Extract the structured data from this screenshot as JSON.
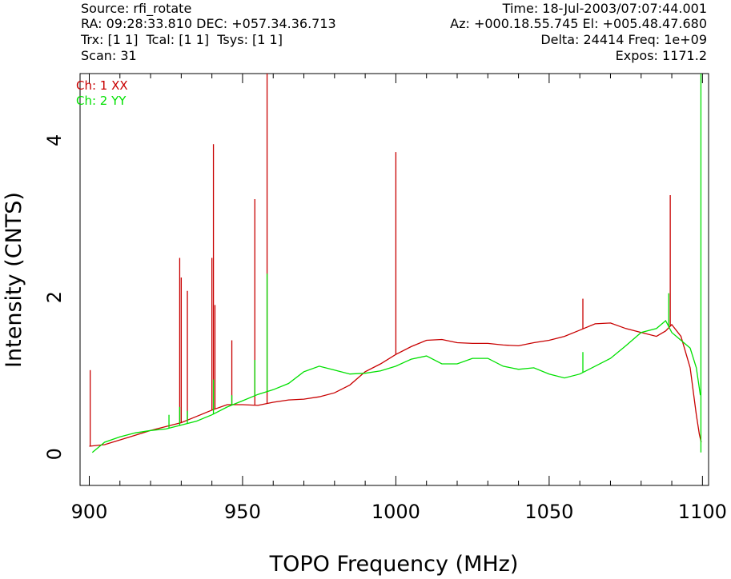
{
  "header": {
    "source": "Source: rfi_rotate",
    "radec": "RA: 09:28:33.810 DEC: +057.34.36.713",
    "trx": "Trx: [1 1]  Tcal: [1 1]  Tsys: [1 1]",
    "scan": "Scan: 31",
    "time": "Time: 18-Jul-2003/07:07:44.001",
    "azel": "Az: +000.18.55.745 El: +005.48.47.680",
    "delta": "Delta: 24414 Freq: 1e+09",
    "expos": "Expos: 1171.2"
  },
  "chart_data": {
    "type": "line",
    "xlabel": "TOPO Frequency (MHz)",
    "ylabel": "Intensity (CNTS)",
    "xlim": [
      897,
      1102
    ],
    "ylim": [
      -0.4,
      4.85
    ],
    "xticks": [
      900,
      950,
      1000,
      1050,
      1100
    ],
    "yticks": [
      0,
      2,
      4
    ],
    "legend_position": "top-left",
    "series": [
      {
        "name": "Ch: 1 XX",
        "color": "#c80000",
        "points": [
          [
            900,
            0.1
          ],
          [
            905,
            0.12
          ],
          [
            910,
            0.18
          ],
          [
            915,
            0.24
          ],
          [
            920,
            0.3
          ],
          [
            925,
            0.35
          ],
          [
            930,
            0.4
          ],
          [
            935,
            0.48
          ],
          [
            940,
            0.56
          ],
          [
            945,
            0.63
          ],
          [
            950,
            0.63
          ],
          [
            955,
            0.62
          ],
          [
            960,
            0.66
          ],
          [
            965,
            0.69
          ],
          [
            970,
            0.7
          ],
          [
            975,
            0.73
          ],
          [
            980,
            0.78
          ],
          [
            985,
            0.88
          ],
          [
            990,
            1.05
          ],
          [
            995,
            1.15
          ],
          [
            1000,
            1.27
          ],
          [
            1005,
            1.37
          ],
          [
            1010,
            1.45
          ],
          [
            1015,
            1.46
          ],
          [
            1020,
            1.42
          ],
          [
            1025,
            1.41
          ],
          [
            1030,
            1.41
          ],
          [
            1035,
            1.39
          ],
          [
            1040,
            1.38
          ],
          [
            1045,
            1.42
          ],
          [
            1050,
            1.45
          ],
          [
            1055,
            1.5
          ],
          [
            1060,
            1.58
          ],
          [
            1065,
            1.66
          ],
          [
            1070,
            1.67
          ],
          [
            1075,
            1.6
          ],
          [
            1080,
            1.55
          ],
          [
            1085,
            1.5
          ],
          [
            1088,
            1.57
          ],
          [
            1090,
            1.65
          ],
          [
            1093,
            1.5
          ],
          [
            1096,
            1.1
          ],
          [
            1098,
            0.5
          ],
          [
            1099,
            0.25
          ],
          [
            1099.6,
            0.15
          ]
        ],
        "spikes": [
          [
            900.3,
            1.07
          ],
          [
            929.5,
            2.5
          ],
          [
            930,
            2.25
          ],
          [
            932,
            2.08
          ],
          [
            940,
            2.5
          ],
          [
            940.5,
            3.95
          ],
          [
            941,
            1.9
          ],
          [
            946.5,
            1.45
          ],
          [
            954,
            3.25
          ],
          [
            958,
            4.85
          ],
          [
            1000,
            3.85
          ],
          [
            1061,
            1.98
          ],
          [
            1089.5,
            3.3
          ]
        ]
      },
      {
        "name": "Ch: 2 YY",
        "color": "#00e000",
        "points": [
          [
            901,
            0.02
          ],
          [
            905,
            0.15
          ],
          [
            910,
            0.22
          ],
          [
            915,
            0.27
          ],
          [
            920,
            0.3
          ],
          [
            925,
            0.32
          ],
          [
            930,
            0.37
          ],
          [
            935,
            0.42
          ],
          [
            940,
            0.5
          ],
          [
            945,
            0.6
          ],
          [
            950,
            0.68
          ],
          [
            955,
            0.76
          ],
          [
            960,
            0.82
          ],
          [
            965,
            0.9
          ],
          [
            970,
            1.05
          ],
          [
            975,
            1.12
          ],
          [
            980,
            1.07
          ],
          [
            985,
            1.02
          ],
          [
            990,
            1.03
          ],
          [
            995,
            1.06
          ],
          [
            1000,
            1.12
          ],
          [
            1005,
            1.21
          ],
          [
            1010,
            1.25
          ],
          [
            1015,
            1.15
          ],
          [
            1020,
            1.15
          ],
          [
            1025,
            1.22
          ],
          [
            1030,
            1.22
          ],
          [
            1035,
            1.12
          ],
          [
            1040,
            1.08
          ],
          [
            1045,
            1.1
          ],
          [
            1050,
            1.02
          ],
          [
            1055,
            0.97
          ],
          [
            1060,
            1.02
          ],
          [
            1065,
            1.12
          ],
          [
            1070,
            1.22
          ],
          [
            1075,
            1.38
          ],
          [
            1080,
            1.55
          ],
          [
            1085,
            1.6
          ],
          [
            1088,
            1.7
          ],
          [
            1090,
            1.55
          ],
          [
            1093,
            1.45
          ],
          [
            1096,
            1.35
          ],
          [
            1098,
            1.1
          ],
          [
            1099.3,
            0.75
          ]
        ],
        "spikes": [
          [
            926,
            0.5
          ],
          [
            929.5,
            0.6
          ],
          [
            932,
            0.55
          ],
          [
            940.5,
            0.95
          ],
          [
            946.5,
            0.75
          ],
          [
            954,
            1.2
          ],
          [
            958,
            2.3
          ],
          [
            1061,
            1.3
          ],
          [
            1089,
            2.05
          ],
          [
            1099.5,
            4.85
          ]
        ]
      }
    ]
  }
}
